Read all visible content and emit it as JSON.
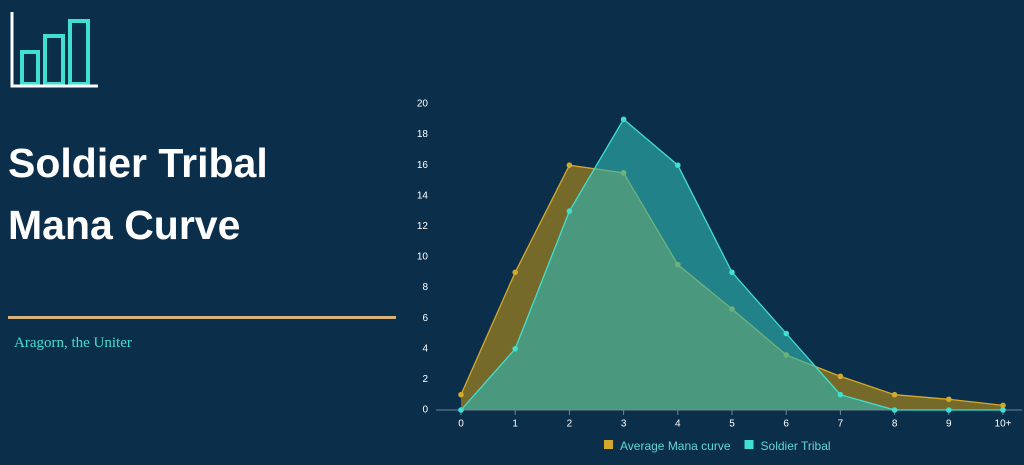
{
  "chart_data": {
    "type": "area",
    "title": "Soldier Tribal Mana Curve",
    "subtitle": "Aragorn, the Uniter",
    "categories": [
      "0",
      "1",
      "2",
      "3",
      "4",
      "5",
      "6",
      "7",
      "8",
      "9",
      "10+"
    ],
    "series": [
      {
        "name": "Average Mana curve",
        "color": "#d4a82a",
        "fill": "#8a7424",
        "values": [
          1,
          9,
          16,
          15.5,
          9.5,
          6.6,
          3.6,
          2.2,
          1,
          0.7,
          0.3
        ]
      },
      {
        "name": "Soldier Tribal",
        "color": "#40e0d0",
        "fill": "#2fb7b2",
        "values": [
          0,
          4,
          13,
          19,
          16,
          9,
          5,
          1,
          0,
          0,
          0
        ]
      }
    ],
    "ylim": [
      0,
      20
    ],
    "yticks": [
      0,
      2,
      4,
      6,
      8,
      10,
      12,
      14,
      16,
      18,
      20
    ],
    "legend": "bottom"
  }
}
